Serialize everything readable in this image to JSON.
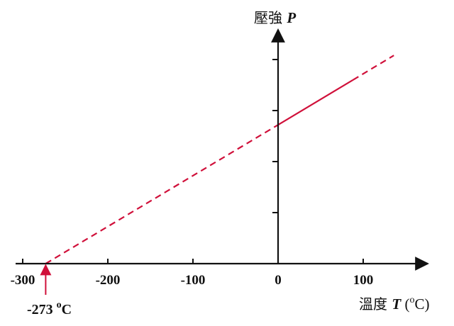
{
  "chart_data": {
    "type": "line",
    "title": "",
    "xlabel": {
      "prefix": "溫度",
      "var": "T",
      "unit_open": " (",
      "unit_sup": "o",
      "unit_rest": "C)"
    },
    "ylabel": {
      "prefix": "壓強",
      "var": "P"
    },
    "xlim": [
      -305,
      160
    ],
    "ylim": [
      0,
      4
    ],
    "x_ticks": [
      -300,
      -200,
      -100,
      0,
      100
    ],
    "x_tick_labels": [
      "-300",
      "-200",
      "-100",
      "0",
      "100"
    ],
    "y_ticks": [
      1,
      2,
      3,
      4
    ],
    "grid": false,
    "series": [
      {
        "style": "dashed",
        "color": "#d0103a",
        "x": [
          -273,
          0
        ],
        "y": [
          0,
          2.72
        ]
      },
      {
        "style": "solid",
        "color": "#d0103a",
        "x": [
          0,
          88
        ],
        "y": [
          2.72,
          3.6
        ]
      },
      {
        "style": "dashed",
        "color": "#d0103a",
        "x": [
          88,
          136
        ],
        "y": [
          3.6,
          4.08
        ]
      }
    ],
    "annotations": [
      {
        "x": -273,
        "label_main": "-273 ",
        "label_sup": "o",
        "label_rest": "C",
        "arrow_color": "#d0103a"
      }
    ]
  }
}
